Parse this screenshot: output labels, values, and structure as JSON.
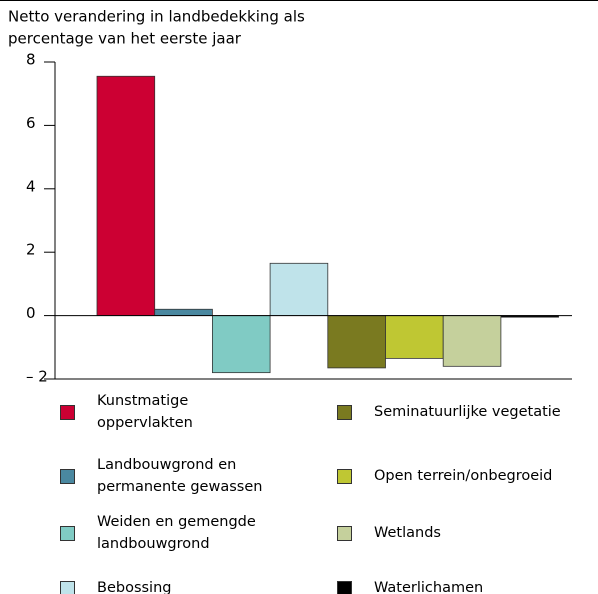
{
  "chart_data": {
    "type": "bar",
    "title_lines": [
      "Netto verandering in landbedekking als",
      "percentage van het eerste jaar"
    ],
    "series": [
      {
        "name": "Kunstmatige oppervlakten",
        "color": "#cc0033",
        "values": [
          7.55
        ]
      },
      {
        "name": "Landbouwgrond en permanente gewassen",
        "color": "#4a88a0",
        "values": [
          0.2
        ]
      },
      {
        "name": "Weiden en gemengde landbouwgrond",
        "color": "#80cbc4",
        "values": [
          -1.8
        ]
      },
      {
        "name": "Bebossing",
        "color": "#bfe3ea",
        "values": [
          1.65
        ]
      },
      {
        "name": "Seminatuurlijke vegetatie",
        "color": "#7a7a20",
        "values": [
          -1.65
        ]
      },
      {
        "name": "Open terrein/onbegroeid",
        "color": "#bfc733",
        "values": [
          -1.35
        ]
      },
      {
        "name": "Wetlands",
        "color": "#c5d09c",
        "values": [
          -1.6
        ]
      },
      {
        "name": "Waterlichamen",
        "color": "#000000",
        "values": [
          -0.05
        ]
      }
    ],
    "ylim": [
      -2,
      8
    ],
    "yticks": [
      {
        "value": -2,
        "label": "– 2"
      },
      0,
      2,
      4,
      6,
      8
    ]
  }
}
